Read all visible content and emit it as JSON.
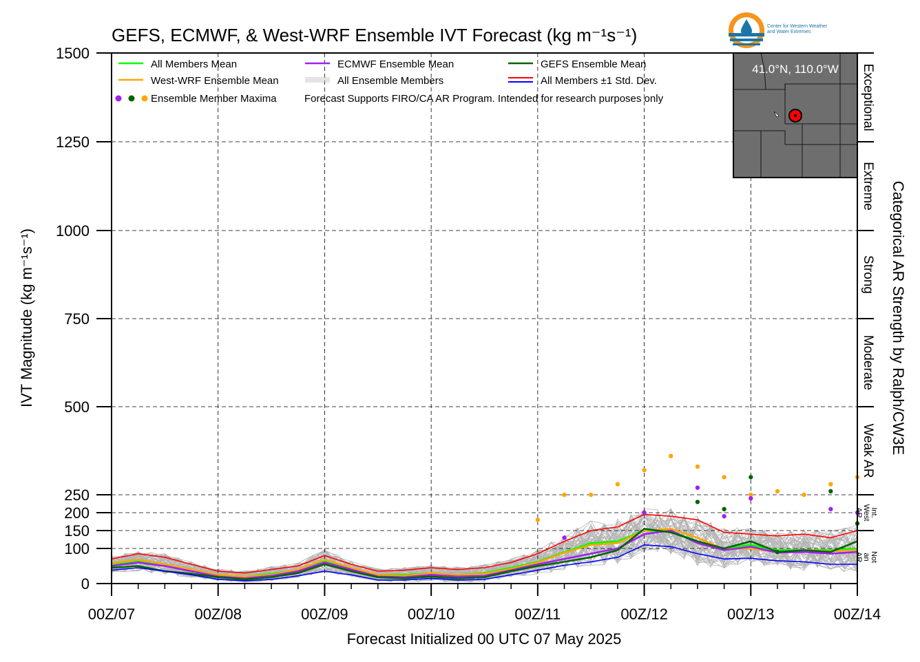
{
  "chart_data": {
    "type": "line",
    "title": "GEFS, ECMWF, & West-WRF Ensemble IVT Forecast (kg m⁻¹s⁻¹)",
    "ylabel": "IVT Magnitude (kg m⁻¹s⁻¹)",
    "xlabel": "Forecast Initialized 00 UTC 07 May 2025",
    "right_label": "Categorical AR Strength by Ralph/CW3E",
    "ylim": [
      0,
      1500
    ],
    "xlim": [
      0,
      168
    ],
    "yticks": [
      0,
      100,
      150,
      200,
      250,
      500,
      750,
      1000,
      1250,
      1500
    ],
    "ytick_labels": [
      "0",
      "100",
      "150",
      "200",
      "250",
      "500",
      "750",
      "1000",
      "1250",
      "1500"
    ],
    "xticks": [
      0,
      24,
      48,
      72,
      96,
      120,
      144,
      168
    ],
    "xtick_labels": [
      "00Z/07",
      "00Z/08",
      "00Z/09",
      "00Z/10",
      "00Z/11",
      "00Z/12",
      "00Z/13",
      "00Z/14"
    ],
    "grid": true,
    "categories": [
      {
        "label": "Exceptional",
        "range": [
          1250,
          1500
        ]
      },
      {
        "label": "Extreme",
        "range": [
          1000,
          1250
        ]
      },
      {
        "label": "Strong",
        "range": [
          750,
          1000
        ]
      },
      {
        "label": "Moderate",
        "range": [
          500,
          750
        ]
      },
      {
        "label": "Weak AR",
        "range": [
          250,
          500
        ]
      },
      {
        "label": "Int. West AR",
        "range": [
          150,
          250
        ]
      },
      {
        "label": "Not an AR",
        "range": [
          0,
          150
        ]
      }
    ],
    "legend": {
      "placement": "top-left",
      "entries": [
        {
          "label": "All Members Mean",
          "color": "#00ff00"
        },
        {
          "label": "ECMWF Ensemble Mean",
          "color": "#a020f0"
        },
        {
          "label": "GEFS Ensemble Mean",
          "color": "#006400"
        },
        {
          "label": "West-WRF Ensemble Mean",
          "color": "#ffa500"
        },
        {
          "label": "All Ensemble Members",
          "color": "#aaaaaa"
        },
        {
          "label": "All Members ±1 Std. Dev.",
          "color": "#ff0000",
          "color2": "#0000ff"
        },
        {
          "label": "Ensemble Member Maxima",
          "color": "#a020f0",
          "color2": "#006400",
          "color3": "#ffa500"
        }
      ],
      "note": "Forecast Supports FIRO/CA AR Program. Intended for research purposes only"
    },
    "inset": {
      "label": "41.0°N, 110.0°W"
    },
    "x": [
      0,
      6,
      12,
      18,
      24,
      30,
      36,
      42,
      48,
      54,
      60,
      66,
      72,
      78,
      84,
      90,
      96,
      102,
      108,
      114,
      120,
      126,
      132,
      138,
      144,
      150,
      156,
      162,
      168
    ],
    "series": [
      {
        "name": "All Members +1 Std. Dev.",
        "color": "#ff0000",
        "values": [
          70,
          85,
          75,
          55,
          35,
          30,
          40,
          50,
          80,
          55,
          35,
          38,
          45,
          40,
          45,
          60,
          85,
          120,
          150,
          160,
          195,
          190,
          180,
          145,
          140,
          135,
          140,
          130,
          150
        ]
      },
      {
        "name": "All Members Mean",
        "color": "#00ff00",
        "values": [
          55,
          65,
          55,
          40,
          25,
          20,
          28,
          38,
          65,
          42,
          25,
          25,
          30,
          25,
          30,
          45,
          62,
          90,
          115,
          120,
          150,
          148,
          120,
          100,
          110,
          95,
          95,
          95,
          100
        ]
      },
      {
        "name": "West-WRF Ensemble Mean",
        "color": "#ffa500",
        "values": [
          58,
          68,
          55,
          40,
          25,
          20,
          25,
          40,
          68,
          45,
          25,
          22,
          30,
          25,
          28,
          42,
          60,
          88,
          110,
          115,
          150,
          155,
          130,
          98,
          100,
          90,
          95,
          92,
          95
        ]
      },
      {
        "name": "ECMWF Ensemble Mean",
        "color": "#a020f0",
        "values": [
          50,
          60,
          50,
          35,
          20,
          15,
          22,
          35,
          60,
          40,
          20,
          18,
          25,
          20,
          22,
          38,
          55,
          70,
          85,
          100,
          140,
          150,
          115,
          95,
          105,
          88,
          90,
          85,
          90
        ]
      },
      {
        "name": "GEFS Ensemble Mean",
        "color": "#006400",
        "values": [
          45,
          50,
          35,
          28,
          18,
          12,
          18,
          30,
          55,
          35,
          18,
          15,
          20,
          15,
          18,
          35,
          50,
          62,
          75,
          95,
          155,
          145,
          120,
          100,
          120,
          90,
          95,
          90,
          120
        ]
      },
      {
        "name": "All Members -1 Std. Dev.",
        "color": "#0000ff",
        "values": [
          38,
          45,
          35,
          25,
          12,
          8,
          12,
          22,
          35,
          25,
          10,
          10,
          15,
          10,
          12,
          25,
          38,
          52,
          62,
          75,
          110,
          105,
          85,
          70,
          72,
          65,
          62,
          55,
          55
        ]
      }
    ],
    "maxima": [
      {
        "model": "West-WRF",
        "color": "#ffa500",
        "x": [
          96,
          102,
          108,
          114,
          120,
          126,
          132,
          138,
          144,
          150,
          156,
          162,
          168
        ],
        "values": [
          180,
          250,
          250,
          280,
          320,
          360,
          330,
          300,
          250,
          260,
          250,
          280,
          300
        ]
      },
      {
        "model": "ECMWF",
        "color": "#a020f0",
        "x": [
          102,
          120,
          132,
          138,
          144,
          162,
          168
        ],
        "values": [
          130,
          200,
          270,
          190,
          240,
          210,
          200
        ]
      },
      {
        "model": "GEFS",
        "color": "#006400",
        "x": [
          132,
          138,
          144,
          150,
          162,
          168
        ],
        "values": [
          230,
          210,
          300,
          90,
          260,
          170
        ]
      }
    ]
  }
}
